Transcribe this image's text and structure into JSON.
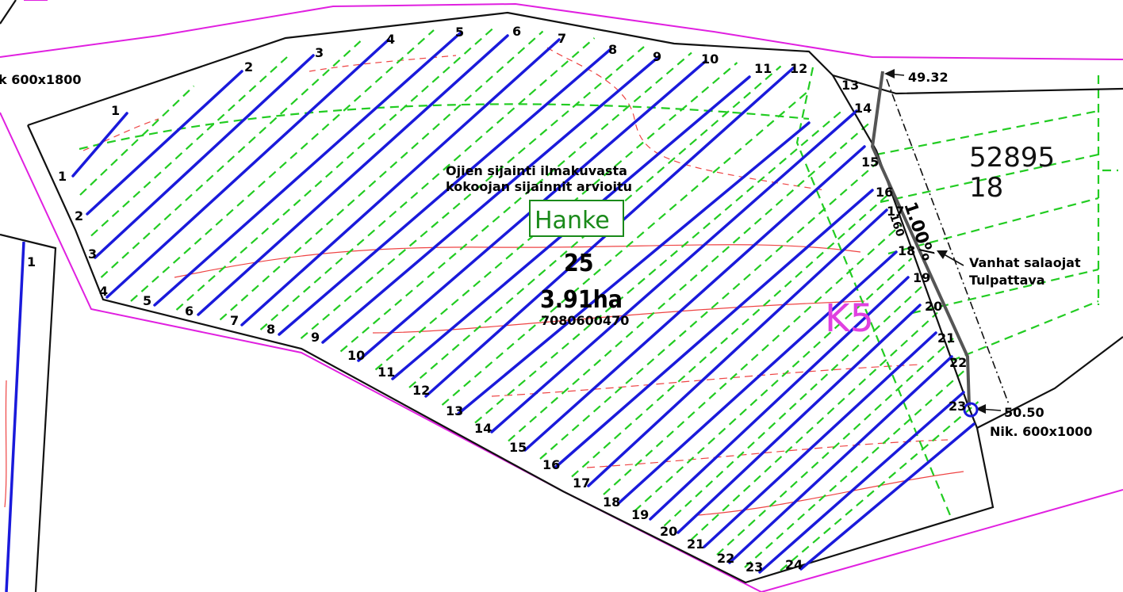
{
  "notes": {
    "line1": "Ojien sijainti ilmakuvasta",
    "line2": "kokoojan sijainnit arvioitu"
  },
  "project": {
    "label": "Hanke",
    "number": "25",
    "area": "3.91ha",
    "code": "7080600470"
  },
  "zone": {
    "label": "K5"
  },
  "parcel": {
    "line1": "52895",
    "line2": "18"
  },
  "slope": {
    "label": "1.00%",
    "length": "160"
  },
  "old_drains": {
    "line1": "Vanhat salaojat",
    "line2": "Tulpattava"
  },
  "outlet": {
    "elevation": "50.50",
    "well": "Nik. 600x1000"
  },
  "inlet": {
    "elevation": "49.32"
  },
  "left_well": {
    "label": "k 600x1800"
  },
  "left_drain": {
    "label": "1"
  },
  "top_drain_labels": [
    "1",
    "2",
    "3",
    "4",
    "5",
    "6",
    "7",
    "8",
    "9",
    "10",
    "11",
    "12",
    "13",
    "14",
    "15",
    "16",
    "17",
    "18",
    "19",
    "20",
    "21",
    "22",
    "23"
  ],
  "bottom_drain_labels": [
    "1",
    "2",
    "3",
    "4",
    "5",
    "6",
    "7",
    "8",
    "9",
    "10",
    "11",
    "12",
    "13",
    "14",
    "15",
    "16",
    "17",
    "18",
    "19",
    "20",
    "21",
    "22",
    "23",
    "24"
  ],
  "colors": {
    "drain": "#1a1adb",
    "planned": "#22cc22",
    "boundary": "#111111",
    "property_line": "#e020e0",
    "contour": "#ee4444"
  }
}
